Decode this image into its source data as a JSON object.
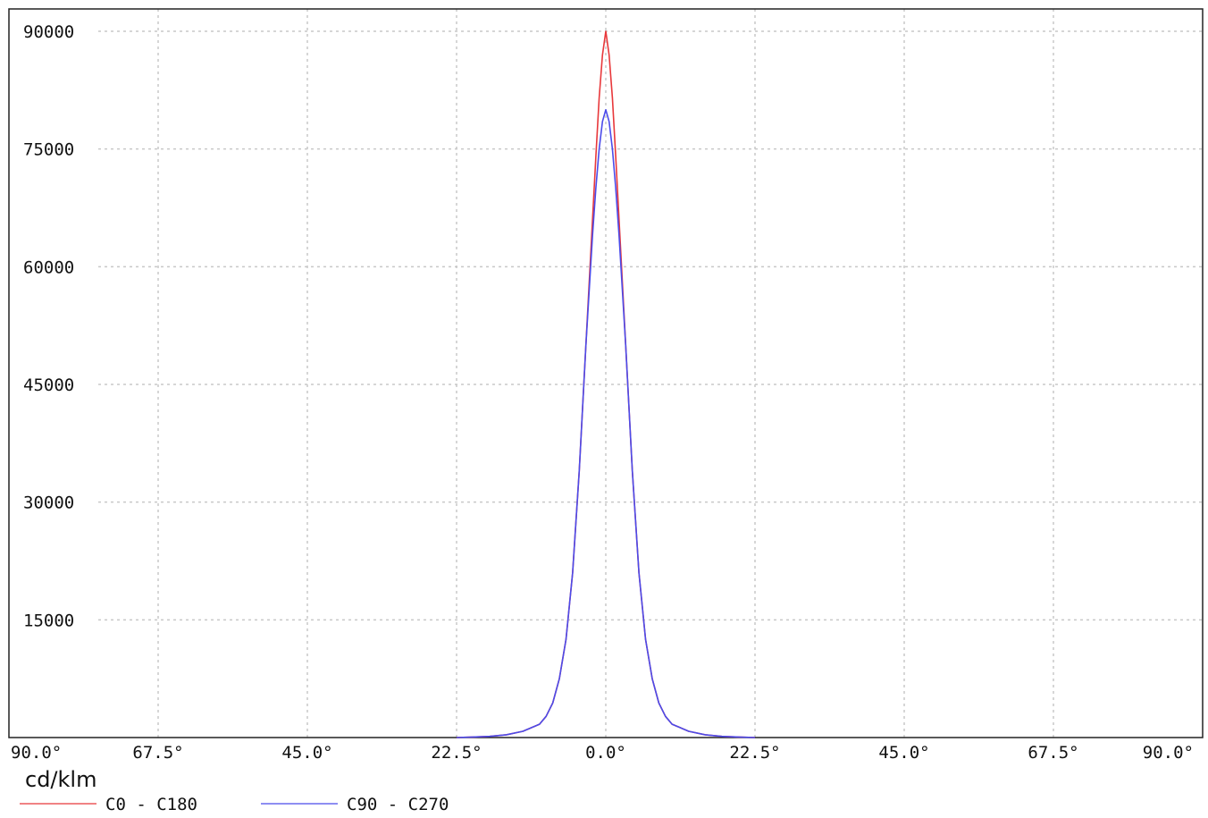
{
  "chart_data": {
    "type": "line",
    "unit_label": "cd/klm",
    "xlim": [
      -90,
      90
    ],
    "ylim": [
      0,
      90000
    ],
    "x_ticks": [
      -90,
      -67.5,
      -45,
      -22.5,
      0,
      22.5,
      45,
      67.5,
      90
    ],
    "x_tick_labels": [
      "90.0°",
      "67.5°",
      "45.0°",
      "22.5°",
      "0.0°",
      "22.5°",
      "45.0°",
      "67.5°",
      "90.0°"
    ],
    "y_ticks": [
      15000,
      30000,
      45000,
      60000,
      75000,
      90000
    ],
    "y_tick_labels": [
      "15000",
      "30000",
      "45000",
      "60000",
      "75000",
      "90000"
    ],
    "grid": true,
    "legend_position": "bottom-left",
    "series": [
      {
        "name": "C0 - C180",
        "color": "#e8383b",
        "x": [
          -22.5,
          -20,
          -17.5,
          -15,
          -12.5,
          -10,
          -9,
          -8,
          -7,
          -6,
          -5,
          -4,
          -3,
          -2,
          -1.5,
          -1,
          -0.5,
          0,
          0.5,
          1,
          1.5,
          2,
          3,
          4,
          5,
          6,
          7,
          8,
          9,
          10,
          12.5,
          15,
          17.5,
          20,
          22.5
        ],
        "y": [
          0,
          60,
          150,
          350,
          800,
          1700,
          2700,
          4400,
          7500,
          12500,
          21000,
          34000,
          50000,
          66000,
          74000,
          81500,
          87000,
          90000,
          87000,
          81500,
          74000,
          66000,
          50000,
          34000,
          21000,
          12500,
          7500,
          4400,
          2700,
          1700,
          800,
          350,
          150,
          60,
          0
        ]
      },
      {
        "name": "C90 - C270",
        "color": "#4b4bea",
        "x": [
          -22.5,
          -20,
          -17.5,
          -15,
          -12.5,
          -10,
          -9,
          -8,
          -7,
          -6,
          -5,
          -4,
          -3,
          -2,
          -1.5,
          -1,
          -0.5,
          0,
          0.5,
          1,
          1.5,
          2,
          3,
          4,
          5,
          6,
          7,
          8,
          9,
          10,
          12.5,
          15,
          17.5,
          20,
          22.5
        ],
        "y": [
          0,
          60,
          150,
          350,
          800,
          1700,
          2700,
          4400,
          7500,
          12500,
          21000,
          34000,
          50000,
          64000,
          70000,
          75000,
          78500,
          80000,
          78500,
          75000,
          70000,
          64000,
          50000,
          34000,
          21000,
          12500,
          7500,
          4400,
          2700,
          1700,
          800,
          350,
          150,
          60,
          0
        ]
      }
    ]
  }
}
